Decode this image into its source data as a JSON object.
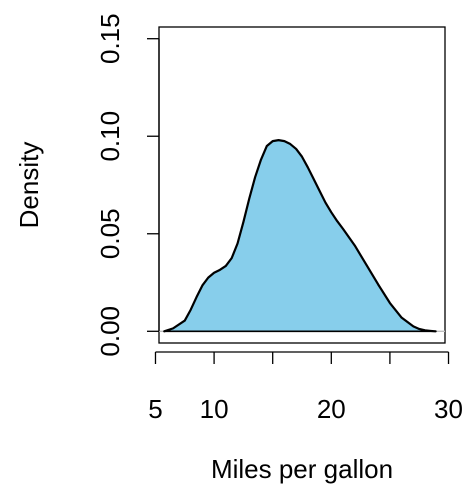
{
  "chart_data": {
    "type": "area",
    "title": "",
    "xlabel": "Miles per gallon",
    "ylabel": "Density",
    "xlim": [
      5.3,
      29.7
    ],
    "ylim": [
      -0.006,
      0.156
    ],
    "x_ticks": [
      5,
      10,
      15,
      20,
      25,
      30
    ],
    "x_tick_labels": [
      "5",
      "10",
      "",
      "20",
      "",
      "30"
    ],
    "y_ticks": [
      0.0,
      0.05,
      0.1,
      0.15
    ],
    "y_tick_labels": [
      "0.00",
      "0.05",
      "0.10",
      "0.15"
    ],
    "grid": false,
    "legend": "none",
    "series": [
      {
        "x": [
          5.75,
          6.5,
          7.5,
          8.0,
          8.5,
          9.0,
          9.5,
          10.0,
          10.5,
          11.0,
          11.5,
          12.0,
          12.5,
          13.0,
          13.5,
          14.0,
          14.5,
          15.0,
          15.5,
          16.0,
          16.5,
          17.0,
          17.5,
          18.0,
          18.5,
          19.0,
          19.5,
          20.0,
          20.5,
          21.0,
          22.0,
          23.0,
          24.0,
          25.0,
          26.0,
          27.0,
          27.5,
          28.0,
          28.5,
          28.9
        ],
        "values": [
          0.0,
          0.0015,
          0.0055,
          0.011,
          0.0175,
          0.0235,
          0.0275,
          0.03,
          0.0315,
          0.0335,
          0.0375,
          0.045,
          0.056,
          0.068,
          0.079,
          0.088,
          0.095,
          0.0975,
          0.098,
          0.0975,
          0.096,
          0.0935,
          0.0895,
          0.084,
          0.078,
          0.072,
          0.066,
          0.061,
          0.0565,
          0.0525,
          0.044,
          0.034,
          0.024,
          0.0145,
          0.007,
          0.0025,
          0.0012,
          0.0005,
          0.0002,
          0.0
        ]
      }
    ],
    "colors": {
      "fill": "#87ceeb",
      "line": "#000000",
      "baseline": "#bebebe"
    }
  }
}
